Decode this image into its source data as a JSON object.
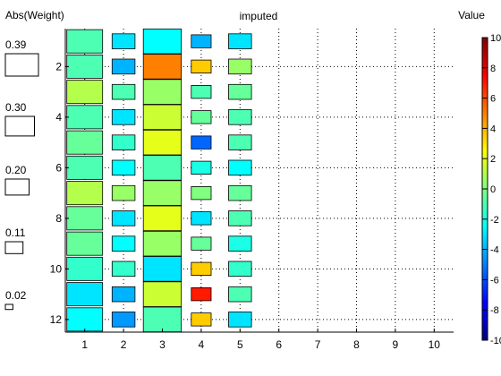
{
  "chart_data": {
    "type": "heatmap",
    "title": "imputed",
    "size_legend_title": "Abs(Weight)",
    "color_legend_title": "Value",
    "x_ticks": [
      "1",
      "2",
      "3",
      "4",
      "5",
      "6",
      "7",
      "8",
      "9",
      "10"
    ],
    "y_ticks": [
      "2",
      "4",
      "6",
      "8",
      "10",
      "12"
    ],
    "xlim": [
      0.5,
      10.5
    ],
    "ylim": [
      0.5,
      12.5
    ],
    "grid": true,
    "legend_position": "left (size) and right (colorbar)",
    "colormap": "jet",
    "color_range": [
      -10,
      10
    ],
    "colorbar_ticks": [
      "10",
      "8",
      "6",
      "4",
      "2",
      "0",
      "-2",
      "-4",
      "-6",
      "-8",
      "-10"
    ],
    "size_legend": [
      {
        "label": "0.39",
        "value": 0.39
      },
      {
        "label": "0.30",
        "value": 0.3
      },
      {
        "label": "0.20",
        "value": 0.2
      },
      {
        "label": "0.11",
        "value": 0.11
      },
      {
        "label": "0.02",
        "value": 0.02
      }
    ],
    "cells": [
      {
        "x": 1,
        "y": 1,
        "w": 0.39,
        "v": -1
      },
      {
        "x": 1,
        "y": 2,
        "w": 0.39,
        "v": -1
      },
      {
        "x": 1,
        "y": 3,
        "w": 0.39,
        "v": 1
      },
      {
        "x": 1,
        "y": 4,
        "w": 0.39,
        "v": -1
      },
      {
        "x": 1,
        "y": 5,
        "w": 0.39,
        "v": -0.5
      },
      {
        "x": 1,
        "y": 6,
        "w": 0.39,
        "v": -1
      },
      {
        "x": 1,
        "y": 7,
        "w": 0.39,
        "v": 1
      },
      {
        "x": 1,
        "y": 8,
        "w": 0.39,
        "v": -0.5
      },
      {
        "x": 1,
        "y": 9,
        "w": 0.39,
        "v": -0.5
      },
      {
        "x": 1,
        "y": 10,
        "w": 0.39,
        "v": -1.5
      },
      {
        "x": 1,
        "y": 11,
        "w": 0.39,
        "v": -3
      },
      {
        "x": 1,
        "y": 12,
        "w": 0.39,
        "v": -2.5
      },
      {
        "x": 2,
        "y": 1,
        "w": 0.16,
        "v": -3
      },
      {
        "x": 2,
        "y": 2,
        "w": 0.16,
        "v": -4
      },
      {
        "x": 2,
        "y": 3,
        "w": 0.16,
        "v": -1
      },
      {
        "x": 2,
        "y": 4,
        "w": 0.16,
        "v": -3
      },
      {
        "x": 2,
        "y": 5,
        "w": 0.16,
        "v": -1.5
      },
      {
        "x": 2,
        "y": 6,
        "w": 0.16,
        "v": -2.5
      },
      {
        "x": 2,
        "y": 7,
        "w": 0.16,
        "v": 0.5
      },
      {
        "x": 2,
        "y": 8,
        "w": 0.16,
        "v": -3
      },
      {
        "x": 2,
        "y": 9,
        "w": 0.16,
        "v": -2.5
      },
      {
        "x": 2,
        "y": 10,
        "w": 0.16,
        "v": -1.5
      },
      {
        "x": 2,
        "y": 11,
        "w": 0.16,
        "v": -4
      },
      {
        "x": 2,
        "y": 12,
        "w": 0.16,
        "v": -4.5
      },
      {
        "x": 3,
        "y": 1,
        "w": 0.44,
        "v": -2.5
      },
      {
        "x": 3,
        "y": 2,
        "w": 0.44,
        "v": 5
      },
      {
        "x": 3,
        "y": 3,
        "w": 0.44,
        "v": 0.5
      },
      {
        "x": 3,
        "y": 4,
        "w": 0.44,
        "v": 1.5
      },
      {
        "x": 3,
        "y": 5,
        "w": 0.44,
        "v": 2
      },
      {
        "x": 3,
        "y": 6,
        "w": 0.44,
        "v": -1
      },
      {
        "x": 3,
        "y": 7,
        "w": 0.44,
        "v": 0.5
      },
      {
        "x": 3,
        "y": 8,
        "w": 0.44,
        "v": 2
      },
      {
        "x": 3,
        "y": 9,
        "w": 0.44,
        "v": 0.5
      },
      {
        "x": 3,
        "y": 10,
        "w": 0.44,
        "v": -3
      },
      {
        "x": 3,
        "y": 11,
        "w": 0.44,
        "v": 1.5
      },
      {
        "x": 3,
        "y": 12,
        "w": 0.44,
        "v": -1
      },
      {
        "x": 4,
        "y": 1,
        "w": 0.12,
        "v": -4
      },
      {
        "x": 4,
        "y": 2,
        "w": 0.12,
        "v": 3.5
      },
      {
        "x": 4,
        "y": 3,
        "w": 0.12,
        "v": -1
      },
      {
        "x": 4,
        "y": 4,
        "w": 0.12,
        "v": -0.5
      },
      {
        "x": 4,
        "y": 5,
        "w": 0.12,
        "v": -5.5
      },
      {
        "x": 4,
        "y": 6,
        "w": 0.12,
        "v": -2
      },
      {
        "x": 4,
        "y": 7,
        "w": 0.12,
        "v": 0
      },
      {
        "x": 4,
        "y": 8,
        "w": 0.12,
        "v": -3
      },
      {
        "x": 4,
        "y": 9,
        "w": 0.12,
        "v": -0.5
      },
      {
        "x": 4,
        "y": 10,
        "w": 0.12,
        "v": 3.5
      },
      {
        "x": 4,
        "y": 11,
        "w": 0.12,
        "v": 7
      },
      {
        "x": 4,
        "y": 12,
        "w": 0.12,
        "v": 3.5
      },
      {
        "x": 5,
        "y": 1,
        "w": 0.16,
        "v": -3
      },
      {
        "x": 5,
        "y": 2,
        "w": 0.16,
        "v": 0.5
      },
      {
        "x": 5,
        "y": 3,
        "w": 0.16,
        "v": -0.5
      },
      {
        "x": 5,
        "y": 4,
        "w": 0.16,
        "v": -1
      },
      {
        "x": 5,
        "y": 5,
        "w": 0.16,
        "v": -1
      },
      {
        "x": 5,
        "y": 6,
        "w": 0.16,
        "v": -2.5
      },
      {
        "x": 5,
        "y": 7,
        "w": 0.16,
        "v": -0.5
      },
      {
        "x": 5,
        "y": 8,
        "w": 0.16,
        "v": -1
      },
      {
        "x": 5,
        "y": 9,
        "w": 0.16,
        "v": -2
      },
      {
        "x": 5,
        "y": 10,
        "w": 0.16,
        "v": -1.5
      },
      {
        "x": 5,
        "y": 11,
        "w": 0.16,
        "v": -1
      },
      {
        "x": 5,
        "y": 12,
        "w": 0.16,
        "v": -3
      }
    ]
  }
}
